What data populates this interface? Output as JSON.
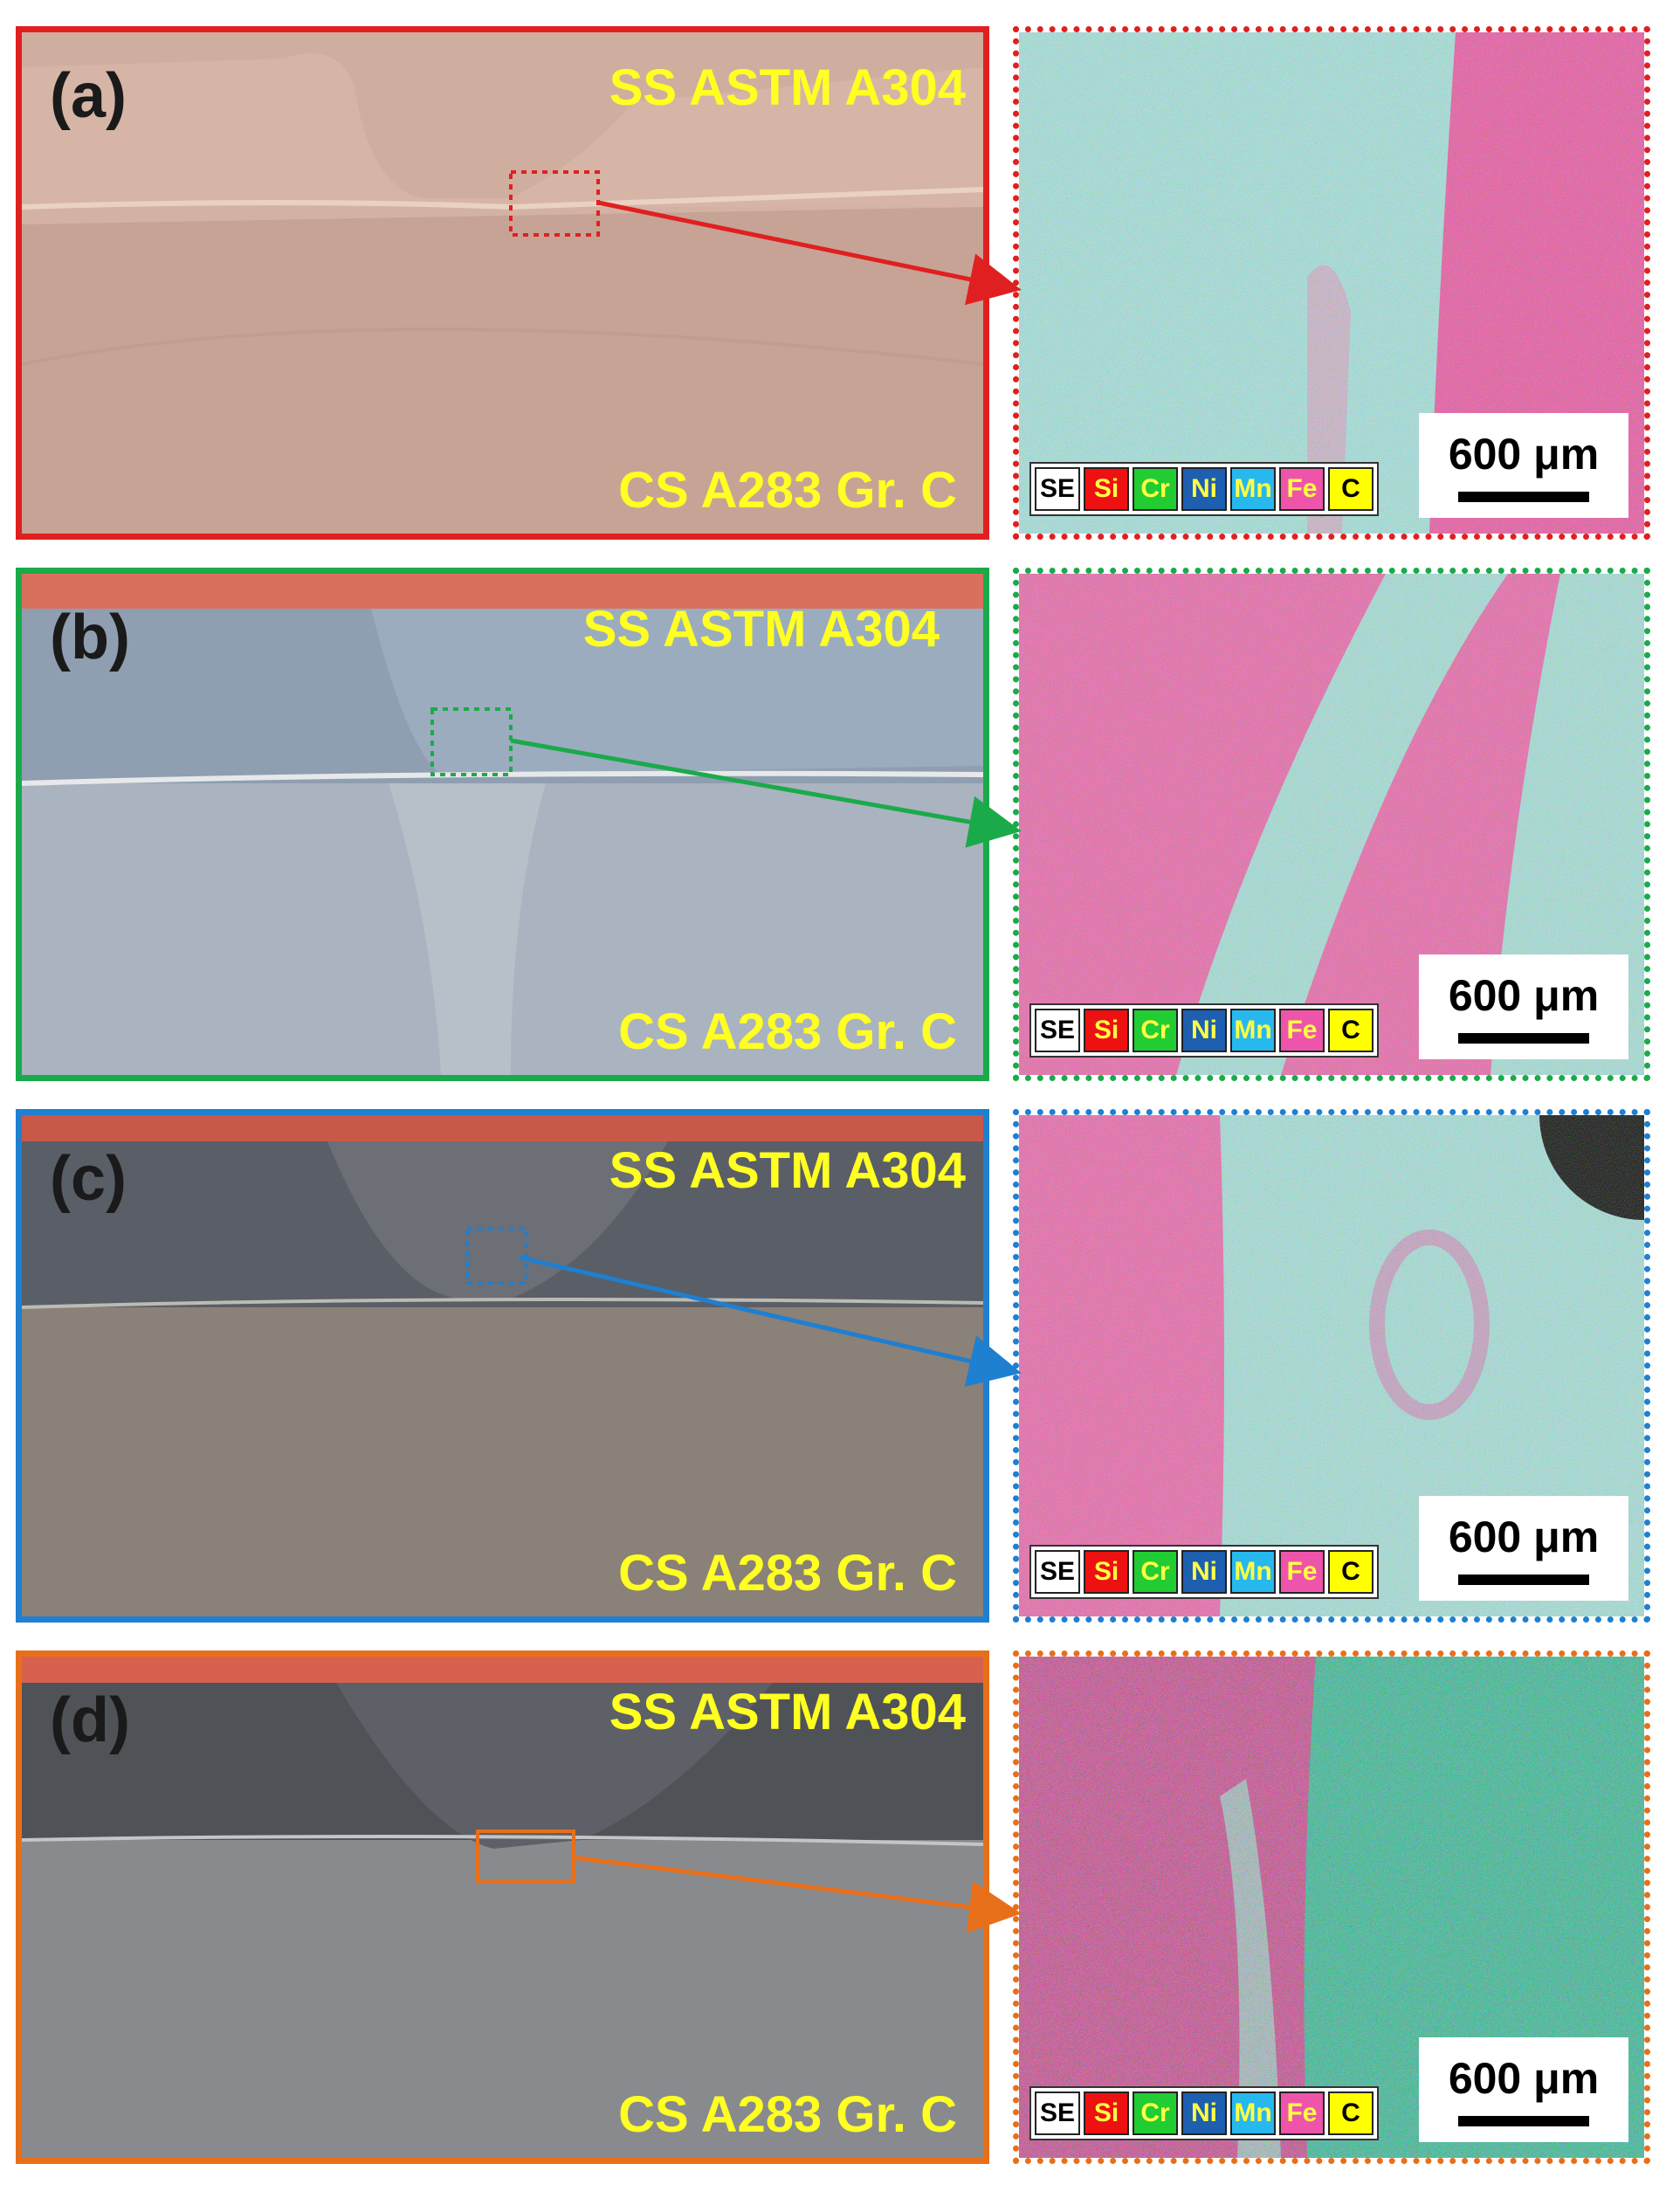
{
  "panels": [
    {
      "id": "a",
      "label": "(a)",
      "top_material": "SS ASTM A304",
      "bottom_material": "CS A283 Gr. C",
      "accent": "#e02020",
      "macro_base": "#c9a79a"
    },
    {
      "id": "b",
      "label": "(b)",
      "top_material": "SS ASTM A304",
      "bottom_material": "CS A283 Gr. C",
      "accent": "#1aaa4a",
      "macro_base": "#aeb6c2"
    },
    {
      "id": "c",
      "label": "(c)",
      "top_material": "SS ASTM A304",
      "bottom_material": "CS A283 Gr. C",
      "accent": "#1f7fd0",
      "macro_base": "#8d857e"
    },
    {
      "id": "d",
      "label": "(d)",
      "top_material": "SS ASTM A304",
      "bottom_material": "CS A283 Gr. C",
      "accent": "#e86f1a",
      "macro_base": "#8a8c90"
    }
  ],
  "legend": [
    {
      "text": "SE",
      "color": "#ffffff",
      "text_color": "#000000"
    },
    {
      "text": "Si",
      "color": "#ee1111",
      "text_color": "#ffff44"
    },
    {
      "text": "Cr",
      "color": "#22cc33",
      "text_color": "#ffff44"
    },
    {
      "text": "Ni",
      "color": "#1e5fb0",
      "text_color": "#ffff44"
    },
    {
      "text": "Mn",
      "color": "#27b8ee",
      "text_color": "#ffff44"
    },
    {
      "text": "Fe",
      "color": "#ee55aa",
      "text_color": "#ffff44"
    },
    {
      "text": "C",
      "color": "#ffff00",
      "text_color": "#000000"
    }
  ],
  "scale_label": "600 μm"
}
